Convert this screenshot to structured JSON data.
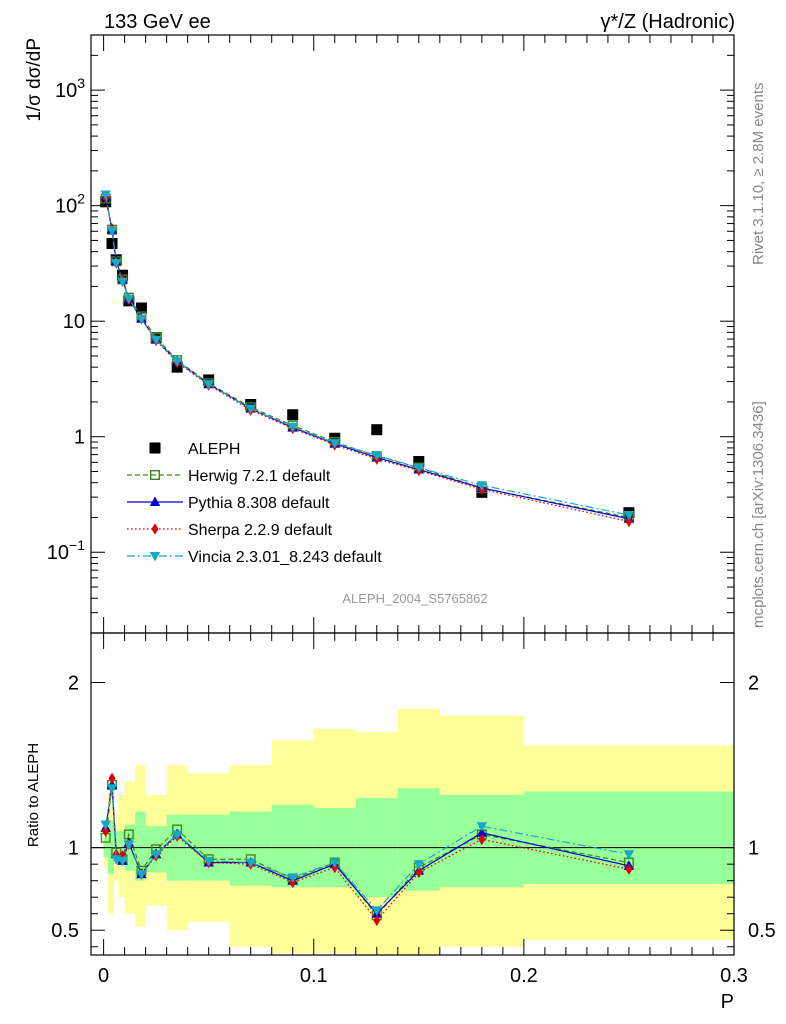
{
  "header": {
    "left": "133 GeV ee",
    "right": "γ*/Z (Hadronic)"
  },
  "side_text": {
    "rivet": "Rivet 3.1.10, ≥ 2.8M events",
    "mcplots": "mcplots.cern.ch [arXiv:1306.3436]"
  },
  "analysis_id": "ALEPH_2004_S5765862",
  "colors": {
    "ALEPH": "#000000",
    "Herwig": "#3a8a1a",
    "Pythia": "#0000cc",
    "Sherpa": "#e00000",
    "Vincia": "#18a8c8",
    "band_inner": "#99ff99",
    "band_outer": "#ffff99"
  },
  "chart_data": [
    {
      "type": "scatter",
      "panel": "main",
      "title": "",
      "xlabel": "P",
      "ylabel": "1/σ  dσ/dP",
      "yscale": "log",
      "ylim": [
        0.02,
        3000
      ],
      "xlim": [
        -0.006,
        0.3
      ],
      "y_tick_labels": [
        "10^3",
        "10^2",
        "10",
        "1",
        "10^-1"
      ],
      "legend_position": "lower-left",
      "x": [
        0.001,
        0.004,
        0.006,
        0.009,
        0.012,
        0.018,
        0.025,
        0.035,
        0.05,
        0.07,
        0.09,
        0.11,
        0.13,
        0.15,
        0.18,
        0.25
      ],
      "series": [
        {
          "name": "ALEPH",
          "marker": "square-filled",
          "values": [
            108,
            47,
            34,
            25,
            15,
            13,
            7.2,
            4.0,
            3.1,
            1.9,
            1.55,
            0.97,
            1.15,
            0.61,
            0.33,
            0.22
          ]
        },
        {
          "name": "Herwig 7.2.1 default",
          "marker": "square-open",
          "dash": "dashed",
          "values": [
            115,
            62,
            33,
            23,
            16,
            11,
            7.2,
            4.6,
            2.9,
            1.8,
            1.25,
            0.9,
            0.68,
            0.54,
            0.36,
            0.2
          ]
        },
        {
          "name": "Pythia 8.308 default",
          "marker": "triangle-up",
          "dash": "solid",
          "values": [
            120,
            62,
            33,
            23,
            15.5,
            10.5,
            6.9,
            4.5,
            2.85,
            1.75,
            1.2,
            0.87,
            0.66,
            0.52,
            0.36,
            0.195
          ]
        },
        {
          "name": "Sherpa 2.2.9 default",
          "marker": "diamond",
          "dash": "dotted",
          "values": [
            118,
            63,
            32,
            23,
            15.5,
            10.5,
            6.8,
            4.4,
            2.8,
            1.7,
            1.18,
            0.85,
            0.64,
            0.51,
            0.35,
            0.185
          ]
        },
        {
          "name": "Vincia 2.3.01_8.243 default",
          "marker": "triangle-down",
          "dash": "dashdot",
          "values": [
            125,
            61,
            32,
            22,
            15.7,
            10.5,
            6.9,
            4.5,
            2.85,
            1.75,
            1.22,
            0.88,
            0.69,
            0.54,
            0.38,
            0.21
          ]
        }
      ]
    },
    {
      "type": "line",
      "panel": "ratio",
      "title": "",
      "xlabel": "P",
      "ylabel": "Ratio to ALEPH",
      "ylim": [
        0.35,
        2.3
      ],
      "xlim": [
        -0.006,
        0.3
      ],
      "y_ticks": [
        0.5,
        1,
        2
      ],
      "y_tick_labels": [
        "0.5",
        "1",
        "2"
      ],
      "x_ticks": [
        0,
        0.1,
        0.2,
        0.3
      ],
      "x_tick_labels": [
        "0",
        "0.1",
        "0.2",
        "0.3"
      ],
      "reference_line": 1,
      "x": [
        0.001,
        0.004,
        0.006,
        0.009,
        0.012,
        0.018,
        0.025,
        0.035,
        0.05,
        0.07,
        0.09,
        0.11,
        0.13,
        0.15,
        0.18,
        0.25
      ],
      "series": [
        {
          "name": "Herwig 7.2.1 default",
          "values": [
            1.06,
            1.38,
            0.97,
            0.93,
            1.08,
            0.86,
            0.99,
            1.11,
            0.93,
            0.93,
            0.81,
            0.91,
            0.59,
            0.88,
            1.08,
            0.91
          ]
        },
        {
          "name": "Pythia 8.308 default",
          "values": [
            1.12,
            1.38,
            0.96,
            0.92,
            1.03,
            0.84,
            0.96,
            1.08,
            0.91,
            0.91,
            0.8,
            0.9,
            0.6,
            0.86,
            1.09,
            0.89
          ]
        },
        {
          "name": "Sherpa 2.2.9 default",
          "values": [
            1.1,
            1.42,
            0.96,
            0.95,
            1.02,
            0.84,
            0.95,
            1.07,
            0.91,
            0.9,
            0.79,
            0.88,
            0.56,
            0.85,
            1.05,
            0.87
          ]
        },
        {
          "name": "Vincia 2.3.01_8.243 default",
          "values": [
            1.14,
            1.36,
            0.93,
            0.92,
            1.02,
            0.84,
            0.96,
            1.08,
            0.92,
            0.91,
            0.82,
            0.91,
            0.62,
            0.9,
            1.13,
            0.96
          ]
        }
      ],
      "bands": {
        "edges": [
          0,
          0.002,
          0.005,
          0.007,
          0.01,
          0.015,
          0.02,
          0.03,
          0.04,
          0.06,
          0.08,
          0.1,
          0.12,
          0.14,
          0.16,
          0.2,
          0.3
        ],
        "inner_lo": [
          0.94,
          0.84,
          0.92,
          0.9,
          0.86,
          0.8,
          0.85,
          0.8,
          0.8,
          0.77,
          0.76,
          0.76,
          0.7,
          0.74,
          0.76,
          0.78
        ],
        "inner_hi": [
          1.06,
          1.16,
          1.1,
          1.1,
          1.14,
          1.22,
          1.13,
          1.2,
          1.2,
          1.22,
          1.26,
          1.24,
          1.3,
          1.36,
          1.32,
          1.34
        ],
        "outer_lo": [
          0.88,
          0.6,
          0.8,
          0.7,
          0.6,
          0.52,
          0.65,
          0.5,
          0.55,
          0.4,
          0.36,
          0.36,
          0.3,
          0.35,
          0.4,
          0.44
        ],
        "outer_hi": [
          1.12,
          1.4,
          1.2,
          1.32,
          1.4,
          1.5,
          1.32,
          1.5,
          1.45,
          1.5,
          1.65,
          1.72,
          1.7,
          1.84,
          1.8,
          1.62
        ]
      }
    }
  ]
}
